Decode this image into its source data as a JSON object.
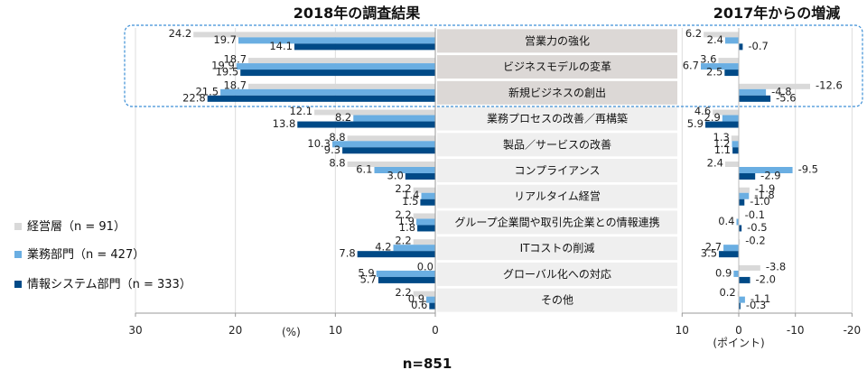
{
  "chart_data": [
    {
      "type": "bar",
      "orientation": "horizontal",
      "title": "2018年の調査結果",
      "xlabel": "(%)",
      "xlim": [
        30,
        0
      ],
      "x_reversed": true,
      "ticks": [
        "30",
        "20",
        "10",
        "0"
      ],
      "grid": true,
      "categories": [
        "営業力の強化",
        "ビジネスモデルの変革",
        "新規ビジネスの創出",
        "業務プロセスの改善／再構築",
        "製品／サービスの改善",
        "コンプライアンス",
        "リアルタイム経営",
        "グループ企業間や取引先企業との情報連携",
        "ITコストの削減",
        "グローバル化への対応",
        "その他"
      ],
      "series": [
        {
          "name": "経営層（n = 91）",
          "color": "#d9d9d9",
          "values": [
            24.2,
            18.7,
            18.7,
            12.1,
            8.8,
            8.8,
            2.2,
            2.2,
            2.2,
            0.0,
            2.2
          ],
          "labels": [
            "24.2",
            "18.7",
            "18.7",
            "12.1",
            "8.8",
            "8.8",
            "2.2",
            "2.2",
            "2.2",
            "0.0",
            "2.2"
          ]
        },
        {
          "name": "業務部門（n = 427）",
          "color": "#6aaee2",
          "values": [
            19.7,
            19.9,
            21.5,
            8.2,
            10.3,
            6.1,
            1.4,
            1.9,
            4.2,
            5.9,
            0.9
          ],
          "labels": [
            "19.7",
            "19.9",
            "21.5",
            "8.2",
            "10.3",
            "6.1",
            "1.4",
            "1.9",
            "4.2",
            "5.9",
            "0.9"
          ]
        },
        {
          "name": "情報システム部門（n = 333）",
          "color": "#004a87",
          "values": [
            14.1,
            19.5,
            22.8,
            13.8,
            9.3,
            3.0,
            1.5,
            1.8,
            7.8,
            5.7,
            0.6
          ],
          "labels": [
            "14.1",
            "19.5",
            "22.8",
            "13.8",
            "9.3",
            "3.0",
            "1.5",
            "1.8",
            "7.8",
            "5.7",
            "0.6"
          ]
        }
      ],
      "highlight_top_rows": 3
    },
    {
      "type": "bar",
      "orientation": "horizontal",
      "title": "2017年からの増減",
      "xlabel": "(ポイント)",
      "xlim": [
        10,
        -20
      ],
      "x_reversed": true,
      "ticks": [
        "10",
        "0",
        "-10",
        "-20"
      ],
      "grid": true,
      "series": [
        {
          "name": "経営層（n = 91）",
          "values": [
            6.2,
            3.6,
            -12.6,
            4.6,
            1.3,
            2.4,
            -1.9,
            -0.1,
            -0.2,
            -3.8,
            0.2
          ],
          "labels": [
            "6.2",
            "3.6",
            "-12.6",
            "4.6",
            "1.3",
            "2.4",
            "-1.9",
            "-0.1",
            "-0.2",
            "-3.8",
            "0.2"
          ]
        },
        {
          "name": "業務部門（n = 427）",
          "values": [
            2.4,
            6.7,
            -4.8,
            2.9,
            1.2,
            -9.5,
            -1.8,
            0.4,
            2.7,
            0.9,
            -1.1
          ],
          "labels": [
            "2.4",
            "6.7",
            "-4.8",
            "2.9",
            "1.2",
            "-9.5",
            "-1.8",
            "0.4",
            "2.7",
            "0.9",
            "-1.1"
          ]
        },
        {
          "name": "情報システム部門（n = 333）",
          "values": [
            -0.7,
            2.5,
            -5.6,
            5.9,
            1.1,
            -2.9,
            -1.0,
            -0.5,
            3.5,
            -2.0,
            -0.3
          ],
          "labels": [
            "-0.7",
            "2.5",
            "-5.6",
            "5.9",
            "1.1",
            "-2.9",
            "-1.0",
            "-0.5",
            "3.5",
            "-2.0",
            "-0.3"
          ]
        }
      ]
    }
  ],
  "legend": [
    "経営層（n = 91）",
    "業務部門（n = 427）",
    "情報システム部門（n = 333）"
  ],
  "legend_placement": "left",
  "footnote": "n=851"
}
